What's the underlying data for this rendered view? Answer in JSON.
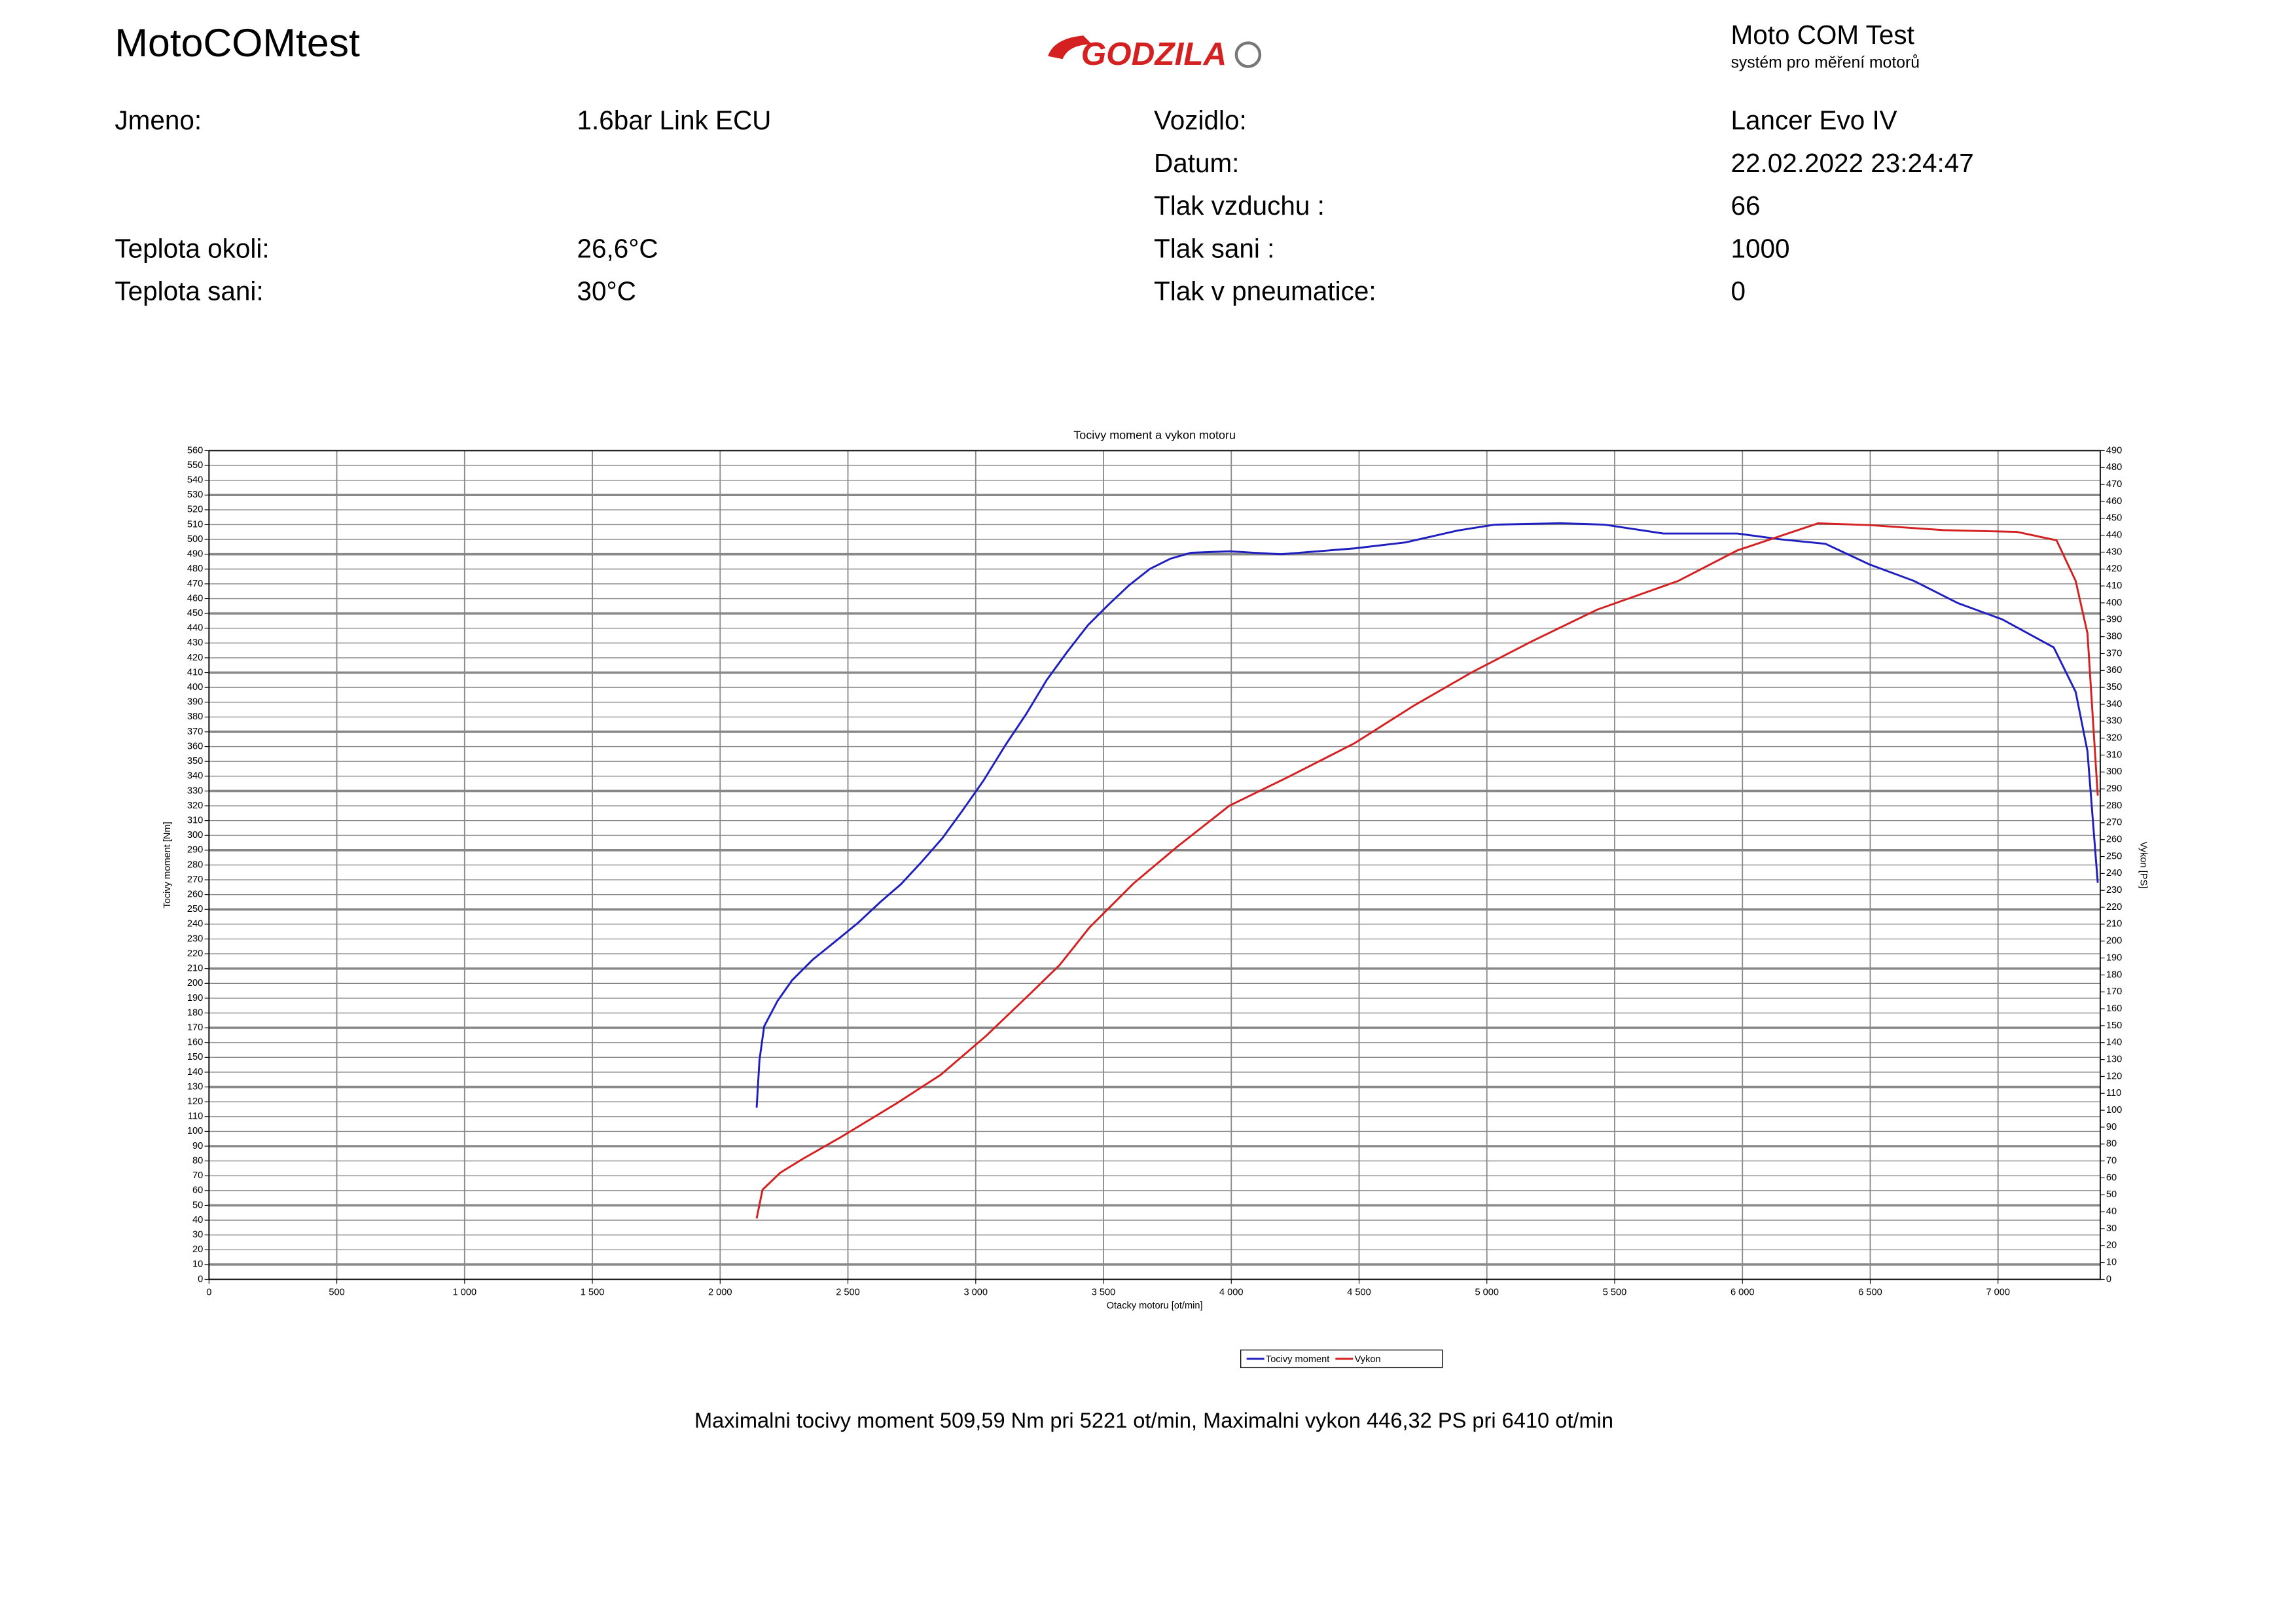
{
  "header": {
    "title": "MotoCOMtest",
    "logo": "GODZILA",
    "brand": "Moto COM Test",
    "brand_subtitle": "systém pro měření motorů"
  },
  "left_fields": [
    {
      "label": "Jmeno:",
      "value": "1.6bar Link ECU"
    },
    {
      "label": "Teplota okoli:",
      "value": "26,6°C"
    },
    {
      "label": "Teplota sani:",
      "value": "30°C"
    }
  ],
  "right_fields": [
    {
      "label": "Vozidlo:",
      "value": "Lancer Evo IV"
    },
    {
      "label": "Datum:",
      "value": "22.02.2022 23:24:47"
    },
    {
      "label": "Tlak vzduchu :",
      "value": "66"
    },
    {
      "label": "Tlak sani :",
      "value": "1000"
    },
    {
      "label": "Tlak v pneumatice:",
      "value": "0"
    }
  ],
  "chart_data": {
    "type": "line",
    "title": "Tocivy moment a vykon motoru",
    "x_label": "Otacky motoru [ot/min]",
    "y_label": "Tocivy moment [Nm]",
    "y2_label": "Vykon [PS]",
    "xlim": [
      0,
      7400
    ],
    "ylim": [
      0,
      560
    ],
    "y2lim": [
      0,
      490
    ],
    "grid": true,
    "legend": "bottom",
    "xticks": [
      0,
      500,
      {
        "value": 1000,
        "label": "1 000"
      },
      {
        "value": 1500,
        "label": "1 500"
      },
      {
        "value": 2000,
        "label": "2 000"
      },
      {
        "value": 2500,
        "label": "2 500"
      },
      {
        "value": 3000,
        "label": "3 000"
      },
      {
        "value": 3500,
        "label": "3 500"
      },
      {
        "value": 4000,
        "label": "4 000"
      },
      {
        "value": 4500,
        "label": "4 500"
      },
      {
        "value": 5000,
        "label": "5 000"
      },
      {
        "value": 5500,
        "label": "5 500"
      },
      {
        "value": 6000,
        "label": "6 000"
      },
      {
        "value": 6500,
        "label": "6 500"
      },
      {
        "value": 7000,
        "label": "7 000"
      }
    ],
    "yticks": [
      0,
      10,
      20,
      30,
      40,
      50,
      60,
      70,
      80,
      90,
      100,
      110,
      120,
      130,
      140,
      150,
      160,
      170,
      180,
      190,
      200,
      210,
      220,
      230,
      240,
      250,
      260,
      270,
      280,
      290,
      300,
      310,
      320,
      330,
      340,
      350,
      360,
      370,
      380,
      390,
      400,
      410,
      420,
      430,
      440,
      450,
      460,
      470,
      480,
      490,
      500,
      510,
      520,
      530,
      540,
      550,
      560
    ],
    "y2ticks": [
      0,
      10,
      20,
      30,
      40,
      50,
      60,
      70,
      80,
      90,
      100,
      110,
      120,
      130,
      140,
      150,
      160,
      170,
      180,
      190,
      200,
      210,
      220,
      230,
      240,
      250,
      260,
      270,
      280,
      290,
      300,
      310,
      320,
      330,
      340,
      350,
      360,
      370,
      380,
      390,
      400,
      410,
      420,
      430,
      440,
      450,
      460,
      470,
      480,
      490
    ],
    "series": [
      {
        "name": "Tocivy moment",
        "color": "#1f1fbf",
        "x": [
          2143,
          2154,
          2172,
          2224,
          2281,
          2362,
          2448,
          2540,
          2627,
          2707,
          2788,
          2869,
          2949,
          3030,
          3116,
          3197,
          3278,
          3358,
          3439,
          3520,
          3600,
          3681,
          3762,
          3842,
          3992,
          4194,
          4482,
          4683,
          4885,
          5029,
          5288,
          5461,
          5691,
          5980,
          6152,
          6325,
          6498,
          6671,
          6843,
          7016,
          7218,
          7304,
          7350,
          7390
        ],
        "values": [
          116,
          148,
          171,
          188,
          202,
          216,
          228,
          241,
          255,
          267,
          282,
          298,
          317,
          337,
          361,
          382,
          405,
          424,
          442,
          456,
          469,
          480,
          487,
          491,
          492,
          490,
          494,
          498,
          506,
          510,
          511,
          510,
          504,
          504,
          500,
          497,
          483,
          472,
          457,
          446,
          427,
          397,
          357,
          268
        ]
      },
      {
        "name": "Vykon",
        "color": "#d42020",
        "axis": "y2",
        "x": [
          2143,
          2166,
          2235,
          2321,
          2471,
          2690,
          2863,
          3041,
          3214,
          3329,
          3445,
          3617,
          3790,
          3992,
          4222,
          4482,
          4712,
          4942,
          5173,
          5432,
          5749,
          5980,
          6296,
          6498,
          6786,
          7074,
          7229,
          7304,
          7350,
          7390
        ],
        "values": [
          36,
          53,
          63,
          71,
          84,
          104,
          121,
          144,
          169,
          186,
          208,
          234,
          256,
          280,
          297,
          317,
          339,
          359,
          377,
          396,
          413,
          431,
          447,
          446,
          443,
          442,
          437,
          413,
          382,
          286
        ]
      }
    ]
  },
  "footer": "Maximalni tocivy moment 509,59 Nm pri 5221 ot/min,  Maximalni vykon 446,32 PS pri 6410 ot/min"
}
